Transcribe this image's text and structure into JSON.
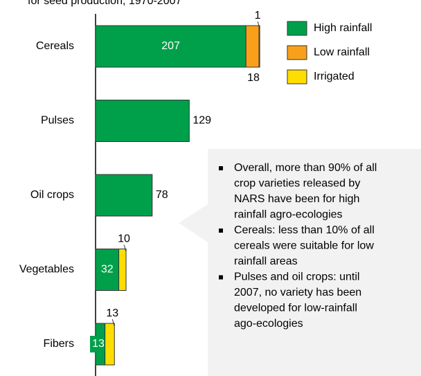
{
  "chart_data": {
    "type": "bar",
    "orientation": "horizontal",
    "stacked": true,
    "title": "for seed production, 1970-2007",
    "categories": [
      "Cereals",
      "Pulses",
      "Oil crops",
      "Vegetables",
      "Fibers"
    ],
    "series": [
      {
        "name": "High rainfall",
        "color": "#00a04a",
        "values": [
          207,
          129,
          78,
          32,
          13
        ],
        "value_labels": [
          "207",
          "129",
          "78",
          "32",
          "13"
        ]
      },
      {
        "name": "Low rainfall",
        "color": "#f9a01b",
        "values": [
          18,
          0,
          0,
          0,
          0
        ],
        "value_labels": [
          "18",
          null,
          null,
          null,
          null
        ]
      },
      {
        "name": "Irrigated",
        "color": "#ffdd00",
        "values": [
          1,
          0,
          0,
          10,
          13
        ],
        "value_labels": [
          "1",
          null,
          null,
          "10",
          "13"
        ]
      }
    ],
    "xlim": [
      0,
      448
    ],
    "legend": "top-right",
    "notes": [
      [
        "Overall, more than 90% of all",
        "crop varieties released by",
        "NARS have been for high",
        "rainfall agro-ecologies"
      ],
      [
        "Cereals: less than 10% of all",
        "cereals were suitable for low",
        "rainfall areas"
      ],
      [
        "Pulses and oil crops: until",
        "2007, no variety has been",
        "developed for low-rainfall",
        "ago-ecologies"
      ]
    ]
  }
}
